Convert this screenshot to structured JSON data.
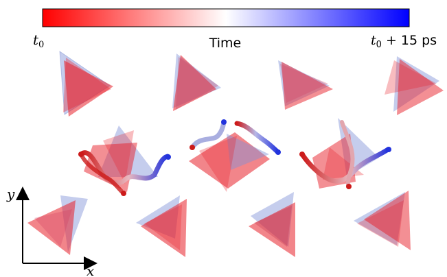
{
  "colorbar": {
    "title": "Time",
    "start_label": "t",
    "start_sub": "0",
    "end_label_t": "t",
    "end_sub": "0",
    "end_suffix": " + 15 ps",
    "color_start": "#ff0000",
    "color_mid": "#ffffff",
    "color_end": "#0000ff"
  },
  "axes": {
    "x_label": "x",
    "y_label": "y"
  },
  "colors": {
    "red_tetra": "#e8202a",
    "blue_tetra": "#7f90d8",
    "chain_blue": "#2233dd",
    "chain_red": "#cc1a1a"
  }
}
